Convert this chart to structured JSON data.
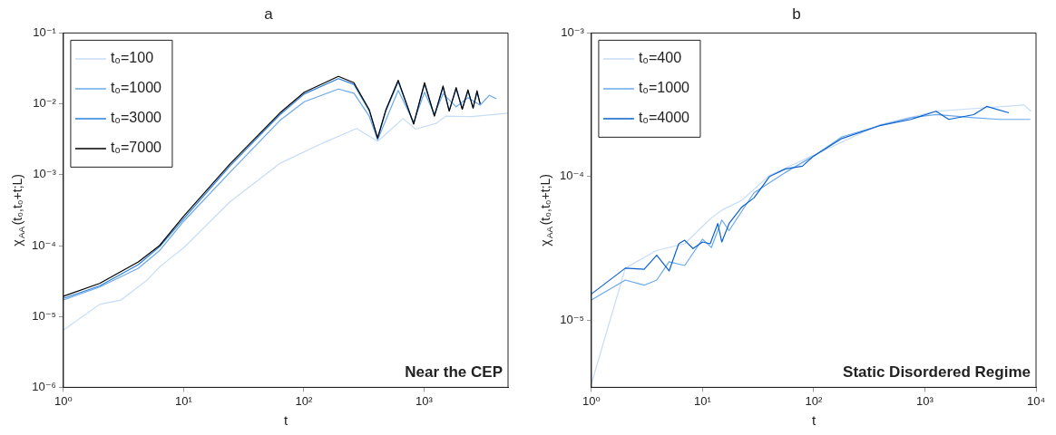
{
  "chart_data": [
    {
      "type": "line",
      "title": "a",
      "xlabel": "t",
      "ylabel": "χ$_{AA}$(t₀,t₀+t;L)",
      "log": "xy",
      "grid": false,
      "legend": "top left",
      "marker": "none",
      "line_style": "solid",
      "xlim": [
        1,
        5000
      ],
      "xticks": [
        {
          "value": 1,
          "label": "10⁰"
        },
        {
          "value": 10,
          "label": "10¹"
        },
        {
          "value": 100,
          "label": "10²"
        },
        {
          "value": 1000,
          "label": "10³"
        }
      ],
      "ylim": [
        1e-06,
        0.1
      ],
      "yticks": [
        {
          "value": 1e-06,
          "label": "10⁻⁶"
        },
        {
          "value": 1e-05,
          "label": "10⁻⁵"
        },
        {
          "value": 0.0001,
          "label": "10⁻⁴"
        },
        {
          "value": 0.001,
          "label": "10⁻³"
        },
        {
          "value": 0.01,
          "label": "10⁻²"
        },
        {
          "value": 0.1,
          "label": "10⁻¹"
        }
      ],
      "annotations": [
        "Near the CEP"
      ],
      "series": [
        {
          "name": "t₀=100",
          "color": "#c6dcf7",
          "x": [
            1,
            2,
            3,
            5,
            6.3,
            8,
            10,
            24.5,
            63,
            144,
            275,
            411,
            670,
            850,
            1260,
            1520,
            2500,
            5000
          ],
          "values": [
            6.4e-06,
            1.48e-05,
            1.7e-05,
            3.3e-05,
            5e-05,
            6.9e-05,
            9.3e-05,
            0.00042,
            0.00144,
            0.0028,
            0.0045,
            0.00295,
            0.0062,
            0.0044,
            0.0053,
            0.0067,
            0.0066,
            0.0074
          ]
        },
        {
          "name": "t₀=1000",
          "color": "#6aa8ec",
          "x": [
            1,
            2,
            4.2,
            6.3,
            10,
            24.5,
            63,
            101,
            194,
            261,
            350,
            411,
            610,
            820,
            1010,
            1220,
            1440,
            1850,
            2320,
            2930,
            3500,
            4000
          ],
          "values": [
            1.71e-05,
            2.6e-05,
            4.8e-05,
            8.5e-05,
            0.00022,
            0.0011,
            0.0058,
            0.0107,
            0.0162,
            0.0141,
            0.0067,
            0.0031,
            0.0155,
            0.0055,
            0.0146,
            0.0071,
            0.0139,
            0.0091,
            0.0122,
            0.0096,
            0.0132,
            0.0118
          ]
        },
        {
          "name": "t₀=3000",
          "color": "#2b7fdd",
          "x": [
            1,
            2,
            4.2,
            6.3,
            10,
            24.5,
            63,
            101,
            194,
            261,
            350,
            411,
            482,
            610,
            820,
            1010,
            1220,
            1440,
            1620,
            1850,
            2080,
            2320,
            2560,
            2760,
            2930
          ],
          "values": [
            1.8e-05,
            2.7e-05,
            5.4e-05,
            9.6e-05,
            0.00024,
            0.00135,
            0.007,
            0.0138,
            0.0227,
            0.0188,
            0.008,
            0.0032,
            0.008,
            0.0205,
            0.0052,
            0.019,
            0.0068,
            0.017,
            0.008,
            0.0162,
            0.0085,
            0.015,
            0.0088,
            0.0145,
            0.01
          ]
        },
        {
          "name": "t₀=7000",
          "color": "#000000",
          "x": [
            1,
            2,
            4.2,
            6.3,
            10,
            24.5,
            63,
            101,
            194,
            261,
            350,
            411,
            482,
            610,
            820,
            1010,
            1220,
            1440,
            1620,
            1850,
            2080,
            2320,
            2560,
            2760,
            2930
          ],
          "values": [
            1.93e-05,
            2.92e-05,
            5.9e-05,
            0.0001,
            0.00026,
            0.00144,
            0.0074,
            0.0146,
            0.0244,
            0.0199,
            0.0083,
            0.0033,
            0.0083,
            0.0215,
            0.0052,
            0.0199,
            0.0067,
            0.0179,
            0.0079,
            0.017,
            0.0084,
            0.0158,
            0.0087,
            0.0153,
            0.01
          ]
        }
      ]
    },
    {
      "type": "line",
      "title": "b",
      "xlabel": "t",
      "ylabel": "χ$_{AA}$(t₀,t₀+t;L)",
      "log": "xy",
      "grid": false,
      "legend": "top left",
      "marker": "none",
      "line_style": "solid",
      "xlim": [
        1,
        10000
      ],
      "xticks": [
        {
          "value": 1,
          "label": "10⁰"
        },
        {
          "value": 10,
          "label": "10¹"
        },
        {
          "value": 100,
          "label": "10²"
        },
        {
          "value": 1000,
          "label": "10³"
        },
        {
          "value": 10000,
          "label": "10⁴"
        }
      ],
      "ylim": [
        3.4e-06,
        0.001
      ],
      "yticks": [
        {
          "value": 1e-05,
          "label": "10⁻⁵"
        },
        {
          "value": 0.0001,
          "label": "10⁻⁴"
        },
        {
          "value": 0.001,
          "label": "10⁻³"
        }
      ],
      "annotations": [
        "Static Disordered Regime"
      ],
      "series": [
        {
          "name": "t₀=400",
          "color": "#c6dcf7",
          "x": [
            1,
            2.02,
            3.87,
            6.9,
            10,
            11.8,
            15.3,
            22.4,
            40,
            100,
            391,
            1260,
            7800,
            9000
          ],
          "values": [
            3.6e-06,
            2.3e-05,
            3.06e-05,
            3.4e-05,
            4.5e-05,
            5.1e-05,
            5.9e-05,
            6.8e-05,
            0.000102,
            0.000141,
            0.00023,
            0.000285,
            0.000315,
            0.000285
          ]
        },
        {
          "name": "t₀=1000",
          "color": "#6aa8ec",
          "x": [
            1,
            2.02,
            2.98,
            3.87,
            5.0,
            6.9,
            10,
            12.0,
            14.9,
            17.3,
            29,
            55.7,
            100,
            179,
            391,
            750,
            1260,
            2750,
            4700,
            8900
          ],
          "values": [
            1.38e-05,
            1.9e-05,
            1.75e-05,
            1.9e-05,
            2.55e-05,
            2.4e-05,
            3.66e-05,
            3.2e-05,
            4.98e-05,
            4.2e-05,
            7.7e-05,
            0.000107,
            0.000139,
            0.000189,
            0.000226,
            0.000257,
            0.00027,
            0.000257,
            0.00025,
            0.00025
          ]
        },
        {
          "name": "t₀=4000",
          "color": "#0a60cc",
          "x": [
            1,
            2.02,
            2.98,
            3.87,
            5.0,
            6.1,
            6.9,
            8.2,
            10,
            11.7,
            13.7,
            14.9,
            17.3,
            22.4,
            29,
            40,
            55.7,
            79,
            100,
            179,
            391,
            750,
            1260,
            1640,
            2750,
            3600,
            5700
          ],
          "values": [
            1.52e-05,
            2.3e-05,
            2.26e-05,
            2.83e-05,
            2.2e-05,
            3.4e-05,
            3.6e-05,
            3.15e-05,
            3.5e-05,
            3.4e-05,
            4.7e-05,
            3.5e-05,
            4.7e-05,
            6.1e-05,
            7.1e-05,
            0.0001,
            0.000113,
            0.000118,
            0.000139,
            0.000184,
            0.000226,
            0.00025,
            0.000285,
            0.00025,
            0.00027,
            0.000308,
            0.000278
          ]
        }
      ]
    }
  ]
}
